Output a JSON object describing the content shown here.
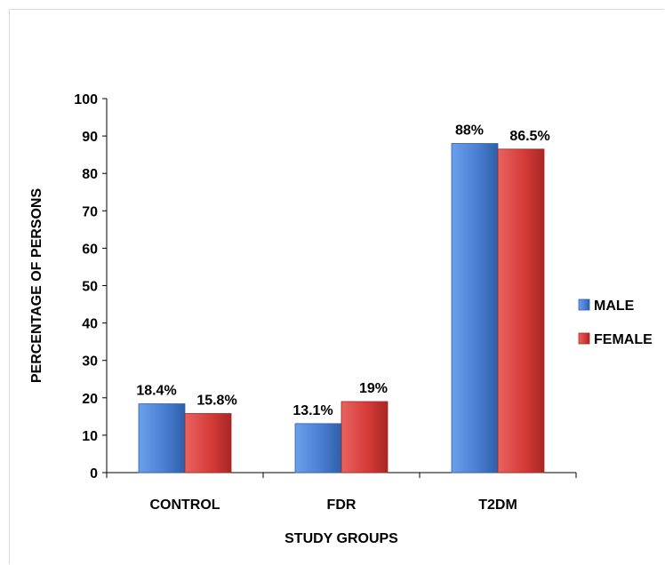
{
  "chart_data": {
    "type": "bar",
    "categories": [
      "CONTROL",
      "FDR",
      "T2DM"
    ],
    "series": [
      {
        "name": "MALE",
        "values": [
          18.4,
          13.1,
          88
        ],
        "labels": [
          "18.4%",
          "13.1%",
          "88%"
        ],
        "color": "#4a7fd4",
        "color_light": "#6aa0ea",
        "color_dark": "#2f5fa8"
      },
      {
        "name": "FEMALE",
        "values": [
          15.8,
          19,
          86.5
        ],
        "labels": [
          "15.8%",
          "19%",
          "86.5%"
        ],
        "color": "#d63c3a",
        "color_light": "#e86360",
        "color_dark": "#a82724"
      }
    ],
    "xlabel": "STUDY GROUPS",
    "ylabel": "PERCENTAGE OF PERSONS",
    "ylim": [
      0,
      100
    ],
    "yticks": [
      0,
      10,
      20,
      30,
      40,
      50,
      60,
      70,
      80,
      90,
      100
    ],
    "grid": false,
    "legend_position": "right"
  }
}
